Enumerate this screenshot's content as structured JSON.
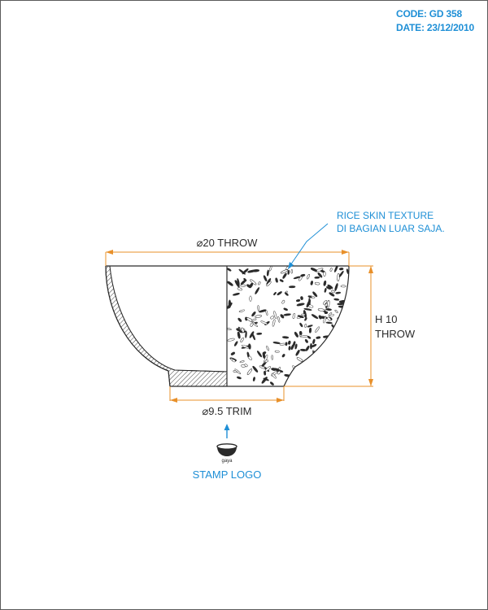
{
  "header": {
    "code": "CODE: GD 358",
    "date": "DATE: 23/12/2010"
  },
  "drawing": {
    "top_diameter_label": "⌀20 THROW",
    "foot_diameter_label": "⌀9.5 TRIM",
    "height_label_line1": "H 10",
    "height_label_line2": "THROW",
    "texture_note_line1": "RICE SKIN TEXTURE",
    "texture_note_line2": "DI BAGIAN LUAR SAJA.",
    "stamp_text": "gaya",
    "stamp_label": "STAMP LOGO"
  },
  "colors": {
    "dimension": "#e8902a",
    "annotation": "#1e8fd6",
    "outline": "#2a2a2a"
  }
}
